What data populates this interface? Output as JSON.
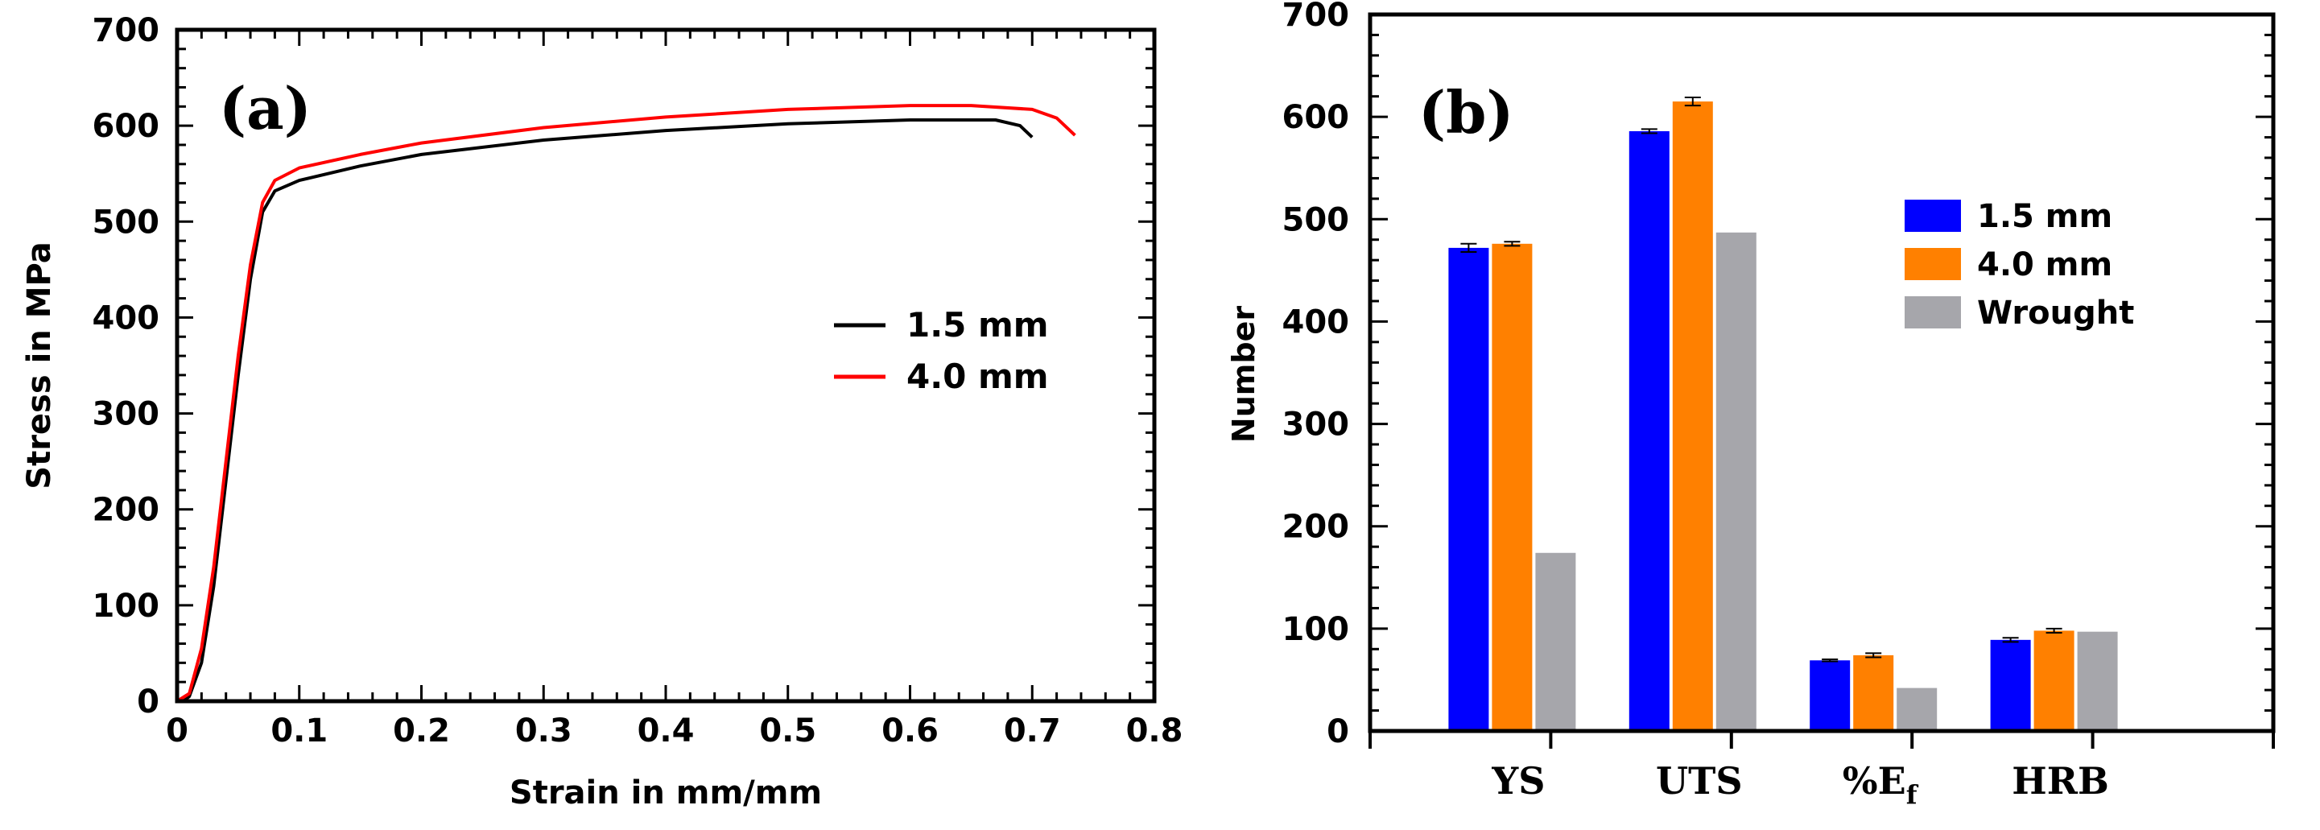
{
  "figure": {
    "panel_a_label": "(a)",
    "panel_b_label": "(b)"
  },
  "chart_data": [
    {
      "type": "line",
      "panel": "a",
      "xlabel": "Strain in mm/mm",
      "ylabel": "Stress in MPa",
      "xlim": [
        0,
        0.8
      ],
      "ylim": [
        0,
        700
      ],
      "xticks": [
        0,
        0.1,
        0.2,
        0.3,
        0.4,
        0.5,
        0.6,
        0.7,
        0.8
      ],
      "yticks": [
        0,
        100,
        200,
        300,
        400,
        500,
        600,
        700
      ],
      "xtick_labels": [
        "0",
        "0.1",
        "0.2",
        "0.3",
        "0.4",
        "0.5",
        "0.6",
        "0.7",
        "0.8"
      ],
      "ytick_labels": [
        "0",
        "100",
        "200",
        "300",
        "400",
        "500",
        "600",
        "700"
      ],
      "legend_position": "right-middle",
      "series": [
        {
          "name": "1.5 mm",
          "color": "#000000",
          "points": [
            [
              0.005,
              0
            ],
            [
              0.01,
              5
            ],
            [
              0.02,
              40
            ],
            [
              0.03,
              120
            ],
            [
              0.04,
              230
            ],
            [
              0.05,
              340
            ],
            [
              0.06,
              440
            ],
            [
              0.07,
              510
            ],
            [
              0.08,
              532
            ],
            [
              0.1,
              543
            ],
            [
              0.15,
              558
            ],
            [
              0.2,
              570
            ],
            [
              0.3,
              585
            ],
            [
              0.4,
              595
            ],
            [
              0.5,
              602
            ],
            [
              0.6,
              606
            ],
            [
              0.67,
              606
            ],
            [
              0.69,
              600
            ],
            [
              0.7,
              588
            ]
          ]
        },
        {
          "name": "4.0 mm",
          "color": "#ff0000",
          "points": [
            [
              0.0,
              0
            ],
            [
              0.01,
              8
            ],
            [
              0.02,
              55
            ],
            [
              0.03,
              140
            ],
            [
              0.04,
              250
            ],
            [
              0.05,
              360
            ],
            [
              0.06,
              455
            ],
            [
              0.07,
              520
            ],
            [
              0.08,
              543
            ],
            [
              0.1,
              556
            ],
            [
              0.15,
              570
            ],
            [
              0.2,
              582
            ],
            [
              0.3,
              598
            ],
            [
              0.4,
              609
            ],
            [
              0.5,
              617
            ],
            [
              0.6,
              621
            ],
            [
              0.65,
              621
            ],
            [
              0.7,
              617
            ],
            [
              0.72,
              608
            ],
            [
              0.735,
              590
            ]
          ]
        }
      ]
    },
    {
      "type": "bar",
      "panel": "b",
      "ylabel": "Number",
      "ylim": [
        0,
        700
      ],
      "yticks": [
        0,
        100,
        200,
        300,
        400,
        500,
        600,
        700
      ],
      "ytick_labels": [
        "0",
        "100",
        "200",
        "300",
        "400",
        "500",
        "600",
        "700"
      ],
      "categories": [
        "YS",
        "UTS",
        "%E",
        "HRB"
      ],
      "category_subscripts": [
        "",
        "",
        "f",
        ""
      ],
      "legend_position": "top-right",
      "series": [
        {
          "name": "1.5 mm",
          "color": "#0000ff",
          "values": [
            472,
            586,
            69,
            89
          ],
          "errors": [
            4,
            2,
            1,
            2
          ]
        },
        {
          "name": "4.0 mm",
          "color": "#ff8000",
          "values": [
            476,
            615,
            74,
            98
          ],
          "errors": [
            2,
            4,
            2,
            2
          ]
        },
        {
          "name": "Wrought",
          "color": "#a6a6ab",
          "values": [
            174,
            487,
            42,
            97
          ],
          "errors": [
            0,
            0,
            0,
            0
          ]
        }
      ]
    }
  ]
}
